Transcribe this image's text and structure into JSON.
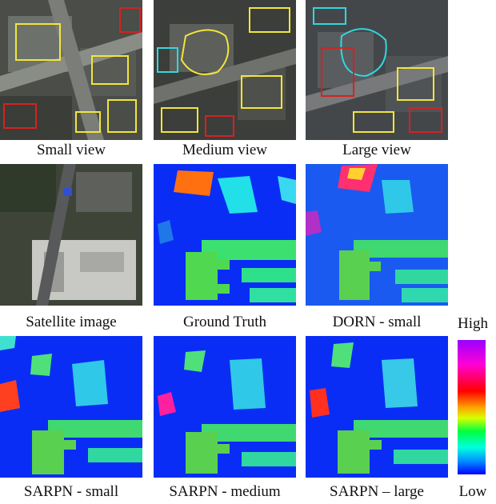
{
  "figure": {
    "row1": {
      "captions": [
        "Small view",
        "Medium view",
        "Large view"
      ]
    },
    "row2": {
      "captions": [
        "Satellite image",
        "Ground Truth",
        "DORN - small"
      ]
    },
    "row3": {
      "captions": [
        "SARPN - small",
        "SARPN - medium",
        "SARPN – large"
      ]
    },
    "colorbar": {
      "high_label": "High",
      "low_label": "Low",
      "colors": [
        "#9a00ff",
        "#ff00d8",
        "#ff0000",
        "#ffa000",
        "#d8ff00",
        "#00ff40",
        "#00ffe0",
        "#0090ff",
        "#0000ff"
      ]
    }
  }
}
